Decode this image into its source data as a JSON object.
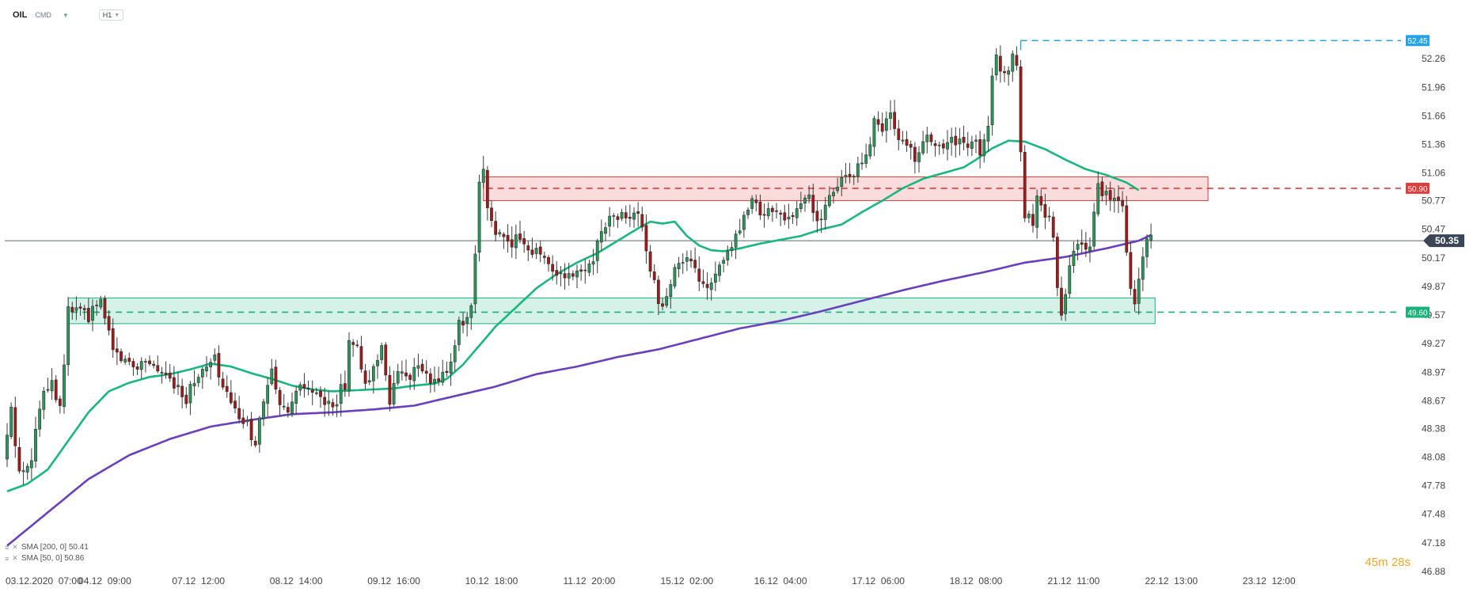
{
  "toolbar": {
    "symbol": "OIL",
    "category": "CMD",
    "timeframe": "H1"
  },
  "legend": [
    {
      "label": "SMA [200, 0] 50.41"
    },
    {
      "label": "SMA [50, 0] 50.86"
    }
  ],
  "timer": {
    "minutes": "45",
    "m": "m",
    "seconds": "28",
    "s": "s"
  },
  "colors": {
    "bull": "#27995a",
    "bear": "#a41818",
    "sma50": "#17b77d",
    "sma200": "#6a3fbf",
    "resistance": "#e23b3b",
    "support": "#1ab27a",
    "high": "#29a3e8",
    "current": "#3a4656"
  },
  "chart_data": {
    "type": "candlestick",
    "instrument": "OIL",
    "timeframe": "H1",
    "ylim": [
      46.88,
      52.56
    ],
    "y_ticks": [
      52.26,
      51.96,
      51.66,
      51.36,
      51.06,
      50.77,
      50.47,
      50.17,
      49.87,
      49.57,
      49.27,
      48.97,
      48.67,
      48.38,
      48.08,
      47.78,
      47.48,
      47.18,
      46.88
    ],
    "x_ticks": [
      "03.12.2020  07:00",
      "04.12  09:00",
      "07.12  12:00",
      "08.12  14:00",
      "09.12  16:00",
      "10.12  18:00",
      "11.12  20:00",
      "15.12  02:00",
      "16.12  04:00",
      "17.12  06:00",
      "18.12  08:00",
      "21.12  11:00",
      "22.12  13:00",
      "23.12  12:00"
    ],
    "x_tick_index": [
      0,
      24,
      47,
      71,
      95,
      119,
      143,
      167,
      190,
      214,
      238,
      262,
      286,
      310
    ],
    "candle_count": 282,
    "anchors": [
      [
        0,
        48.05
      ],
      [
        2,
        48.55
      ],
      [
        4,
        47.9
      ],
      [
        7,
        48.1
      ],
      [
        10,
        48.8
      ],
      [
        12,
        48.9
      ],
      [
        14,
        48.6
      ],
      [
        16,
        49.6
      ],
      [
        18,
        49.65
      ],
      [
        21,
        49.55
      ],
      [
        24,
        49.7
      ],
      [
        26,
        49.4
      ],
      [
        28,
        49.15
      ],
      [
        32,
        49.05
      ],
      [
        36,
        49.1
      ],
      [
        40,
        48.9
      ],
      [
        43,
        48.85
      ],
      [
        45,
        48.7
      ],
      [
        47,
        48.9
      ],
      [
        50,
        49.0
      ],
      [
        52,
        49.1
      ],
      [
        54,
        48.8
      ],
      [
        57,
        48.55
      ],
      [
        60,
        48.4
      ],
      [
        62,
        48.25
      ],
      [
        64,
        48.65
      ],
      [
        66,
        48.95
      ],
      [
        68,
        48.6
      ],
      [
        70,
        48.5
      ],
      [
        72,
        48.75
      ],
      [
        74,
        48.8
      ],
      [
        76,
        48.75
      ],
      [
        78,
        48.7
      ],
      [
        80,
        48.6
      ],
      [
        82,
        48.7
      ],
      [
        84,
        48.85
      ],
      [
        85,
        49.35
      ],
      [
        87,
        49.2
      ],
      [
        89,
        48.8
      ],
      [
        91,
        49.0
      ],
      [
        93,
        49.3
      ],
      [
        95,
        48.6
      ],
      [
        97,
        49.0
      ],
      [
        100,
        48.95
      ],
      [
        103,
        49.0
      ],
      [
        105,
        48.85
      ],
      [
        107,
        48.85
      ],
      [
        110,
        49.1
      ],
      [
        112,
        49.45
      ],
      [
        114,
        49.5
      ],
      [
        115,
        49.6
      ],
      [
        116,
        50.2
      ],
      [
        117,
        50.9
      ],
      [
        118,
        51.05
      ],
      [
        119,
        50.7
      ],
      [
        121,
        50.45
      ],
      [
        124,
        50.3
      ],
      [
        127,
        50.4
      ],
      [
        130,
        50.25
      ],
      [
        133,
        50.2
      ],
      [
        135,
        50.05
      ],
      [
        138,
        49.95
      ],
      [
        141,
        50.0
      ],
      [
        144,
        50.1
      ],
      [
        146,
        50.3
      ],
      [
        148,
        50.55
      ],
      [
        151,
        50.6
      ],
      [
        154,
        50.6
      ],
      [
        156,
        50.65
      ],
      [
        158,
        50.2
      ],
      [
        160,
        49.9
      ],
      [
        162,
        49.6
      ],
      [
        164,
        49.95
      ],
      [
        166,
        50.1
      ],
      [
        168,
        50.15
      ],
      [
        170,
        50.0
      ],
      [
        172,
        49.95
      ],
      [
        174,
        49.85
      ],
      [
        176,
        50.05
      ],
      [
        178,
        50.2
      ],
      [
        180,
        50.35
      ],
      [
        182,
        50.55
      ],
      [
        184,
        50.75
      ],
      [
        186,
        50.65
      ],
      [
        190,
        50.65
      ],
      [
        194,
        50.6
      ],
      [
        196,
        50.75
      ],
      [
        198,
        50.8
      ],
      [
        200,
        50.55
      ],
      [
        202,
        50.7
      ],
      [
        204,
        50.85
      ],
      [
        206,
        51.05
      ],
      [
        208,
        51.0
      ],
      [
        210,
        51.1
      ],
      [
        212,
        51.2
      ],
      [
        214,
        51.6
      ],
      [
        216,
        51.55
      ],
      [
        218,
        51.65
      ],
      [
        220,
        51.45
      ],
      [
        222,
        51.35
      ],
      [
        224,
        51.2
      ],
      [
        226,
        51.4
      ],
      [
        228,
        51.4
      ],
      [
        230,
        51.3
      ],
      [
        232,
        51.35
      ],
      [
        234,
        51.4
      ],
      [
        236,
        51.35
      ],
      [
        238,
        51.4
      ],
      [
        240,
        51.3
      ],
      [
        242,
        51.6
      ],
      [
        243,
        52.05
      ],
      [
        244,
        52.25
      ],
      [
        246,
        52.1
      ],
      [
        248,
        52.3
      ],
      [
        249,
        52.2
      ],
      [
        250,
        51.3
      ],
      [
        251,
        50.65
      ],
      [
        253,
        50.5
      ],
      [
        254,
        50.85
      ],
      [
        255,
        50.7
      ],
      [
        257,
        50.55
      ],
      [
        258,
        50.4
      ],
      [
        259,
        49.9
      ],
      [
        260,
        49.55
      ],
      [
        261,
        49.75
      ],
      [
        263,
        50.3
      ],
      [
        265,
        50.35
      ],
      [
        266,
        50.2
      ],
      [
        267,
        50.35
      ],
      [
        269,
        50.9
      ],
      [
        271,
        50.8
      ],
      [
        273,
        50.75
      ],
      [
        275,
        50.7
      ],
      [
        277,
        49.8
      ],
      [
        278,
        49.65
      ],
      [
        279,
        49.95
      ],
      [
        281,
        50.35
      ]
    ],
    "sma50": [
      [
        0,
        47.72
      ],
      [
        5,
        47.8
      ],
      [
        10,
        47.95
      ],
      [
        15,
        48.25
      ],
      [
        20,
        48.55
      ],
      [
        25,
        48.77
      ],
      [
        30,
        48.86
      ],
      [
        35,
        48.92
      ],
      [
        40,
        48.95
      ],
      [
        45,
        49.0
      ],
      [
        50,
        49.06
      ],
      [
        55,
        49.03
      ],
      [
        60,
        48.96
      ],
      [
        65,
        48.9
      ],
      [
        70,
        48.83
      ],
      [
        75,
        48.79
      ],
      [
        80,
        48.77
      ],
      [
        85,
        48.78
      ],
      [
        90,
        48.79
      ],
      [
        95,
        48.8
      ],
      [
        100,
        48.83
      ],
      [
        105,
        48.85
      ],
      [
        108,
        48.9
      ],
      [
        112,
        49.05
      ],
      [
        116,
        49.25
      ],
      [
        120,
        49.45
      ],
      [
        125,
        49.65
      ],
      [
        130,
        49.85
      ],
      [
        135,
        50.0
      ],
      [
        140,
        50.12
      ],
      [
        145,
        50.22
      ],
      [
        150,
        50.35
      ],
      [
        155,
        50.48
      ],
      [
        158,
        50.55
      ],
      [
        161,
        50.53
      ],
      [
        164,
        50.55
      ],
      [
        167,
        50.4
      ],
      [
        170,
        50.3
      ],
      [
        173,
        50.25
      ],
      [
        176,
        50.24
      ],
      [
        180,
        50.27
      ],
      [
        185,
        50.32
      ],
      [
        190,
        50.36
      ],
      [
        195,
        50.4
      ],
      [
        200,
        50.47
      ],
      [
        205,
        50.52
      ],
      [
        210,
        50.65
      ],
      [
        215,
        50.77
      ],
      [
        220,
        50.9
      ],
      [
        225,
        51.0
      ],
      [
        230,
        51.06
      ],
      [
        235,
        51.12
      ],
      [
        238,
        51.2
      ],
      [
        242,
        51.32
      ],
      [
        246,
        51.4
      ],
      [
        250,
        51.39
      ],
      [
        255,
        51.31
      ],
      [
        260,
        51.2
      ],
      [
        265,
        51.1
      ],
      [
        270,
        51.04
      ],
      [
        275,
        50.96
      ],
      [
        278,
        50.88
      ]
    ],
    "sma200": [
      [
        0,
        47.15
      ],
      [
        10,
        47.5
      ],
      [
        20,
        47.85
      ],
      [
        30,
        48.1
      ],
      [
        40,
        48.27
      ],
      [
        50,
        48.4
      ],
      [
        60,
        48.47
      ],
      [
        70,
        48.53
      ],
      [
        80,
        48.55
      ],
      [
        90,
        48.58
      ],
      [
        100,
        48.62
      ],
      [
        110,
        48.72
      ],
      [
        120,
        48.82
      ],
      [
        130,
        48.95
      ],
      [
        140,
        49.03
      ],
      [
        150,
        49.13
      ],
      [
        160,
        49.21
      ],
      [
        170,
        49.32
      ],
      [
        180,
        49.43
      ],
      [
        190,
        49.51
      ],
      [
        200,
        49.61
      ],
      [
        210,
        49.72
      ],
      [
        220,
        49.83
      ],
      [
        230,
        49.93
      ],
      [
        240,
        50.02
      ],
      [
        250,
        50.12
      ],
      [
        260,
        50.18
      ],
      [
        270,
        50.27
      ],
      [
        278,
        50.35
      ],
      [
        281,
        50.41
      ]
    ],
    "current_price": 50.35,
    "resistance": {
      "level": 50.9,
      "label": "50.90",
      "band": [
        50.77,
        51.02
      ],
      "x_from": 117,
      "x_to": 295
    },
    "support": {
      "level": 49.6,
      "label": "49.60",
      "band": [
        49.48,
        49.75
      ],
      "x_from": 15,
      "x_to": 282
    },
    "recent_high": {
      "level": 52.45,
      "label": "52.45",
      "x_from": 249
    },
    "current_label": "50.35"
  }
}
